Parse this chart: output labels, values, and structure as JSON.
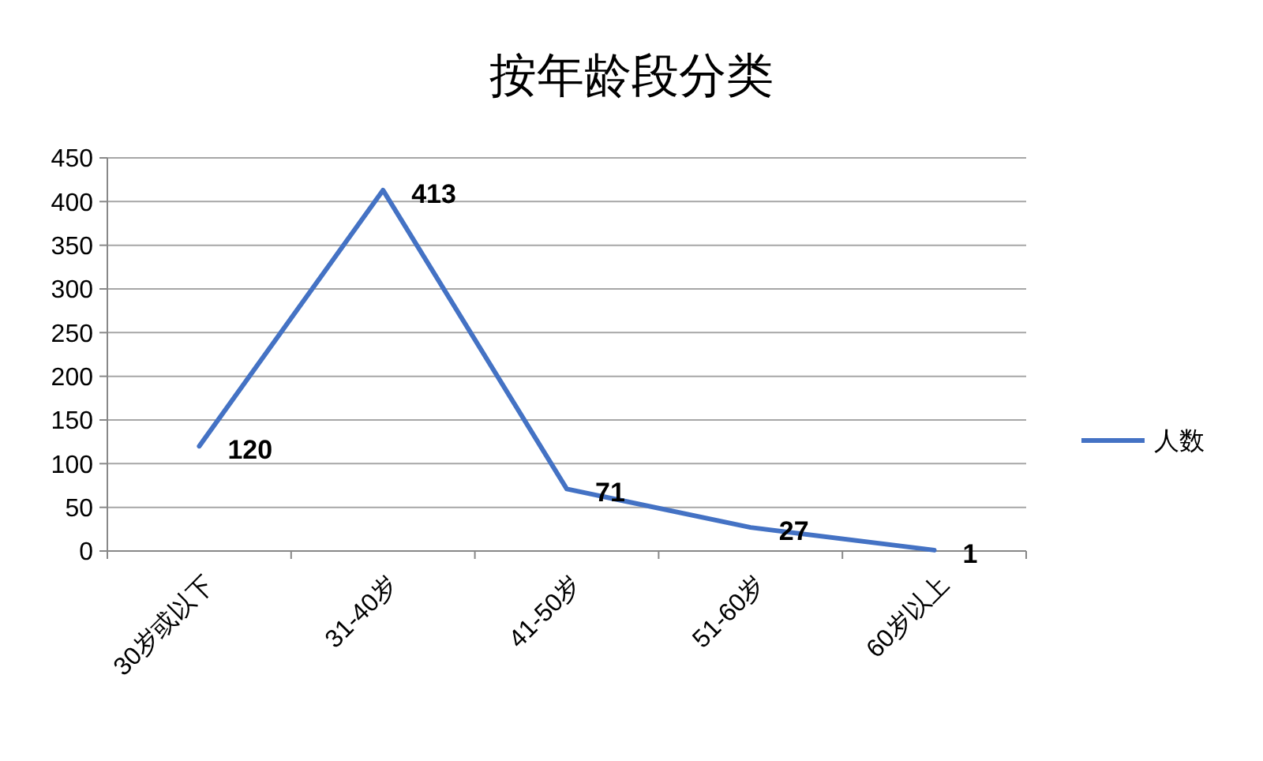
{
  "chart_data": {
    "type": "line",
    "title": "按年龄段分类",
    "categories": [
      "30岁或以下",
      "31-40岁",
      "41-50岁",
      "51-60岁",
      "60岁以上"
    ],
    "series": [
      {
        "name": "人数",
        "color": "#4472c4",
        "values": [
          120,
          413,
          71,
          27,
          1
        ]
      }
    ],
    "ylim": [
      0,
      450
    ],
    "yticks": [
      0,
      50,
      100,
      150,
      200,
      250,
      300,
      350,
      400,
      450
    ],
    "grid": "y",
    "legend": "right",
    "data_labels": true,
    "marker": "none"
  }
}
